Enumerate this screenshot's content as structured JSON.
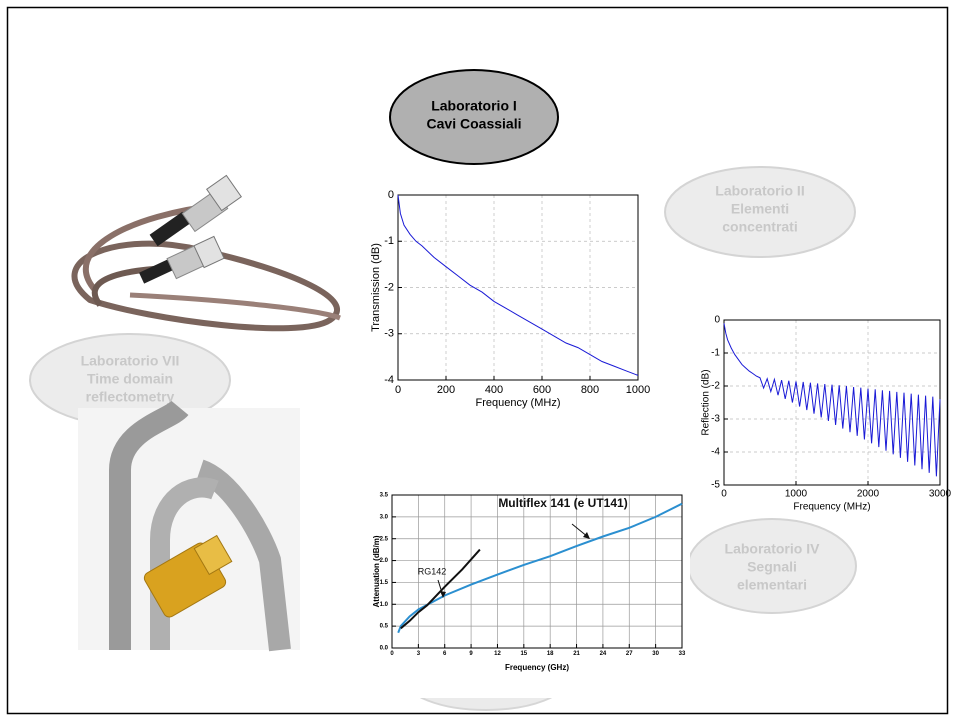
{
  "ovals": [
    {
      "lines": [
        "Laboratorio I",
        "Cavi Coassiali"
      ]
    },
    {
      "lines": [
        "Laboratorio II",
        "Elementi",
        "concentrati"
      ]
    },
    {
      "lines": [
        "Laboratorio VII",
        "Time domain",
        "reflectometry"
      ]
    },
    {
      "lines": [
        "Laboratorio IV",
        "Segnali",
        "elementari"
      ]
    }
  ],
  "chart_data": [
    {
      "type": "line",
      "xlabel": "Frequency (MHz)",
      "ylabel": "Transmission (dB)",
      "color": "#1a1ad6",
      "grid": true,
      "xlim": [
        0,
        1000
      ],
      "ylim": [
        -4,
        0
      ],
      "xticks": [
        0,
        200,
        400,
        600,
        800,
        1000
      ],
      "yticks": [
        -4,
        -3,
        -2,
        -1,
        0
      ],
      "x": [
        0,
        10,
        25,
        50,
        75,
        100,
        150,
        200,
        250,
        300,
        350,
        400,
        450,
        500,
        550,
        600,
        650,
        700,
        750,
        800,
        850,
        900,
        950,
        1000
      ],
      "values": [
        0,
        -0.4,
        -0.65,
        -0.85,
        -1.0,
        -1.1,
        -1.35,
        -1.55,
        -1.75,
        -1.95,
        -2.1,
        -2.3,
        -2.45,
        -2.6,
        -2.75,
        -2.9,
        -3.05,
        -3.2,
        -3.3,
        -3.45,
        -3.6,
        -3.7,
        -3.8,
        -3.9
      ]
    },
    {
      "type": "line",
      "xlabel": "Frequency (MHz)",
      "ylabel": "Reflection (dB)",
      "color": "#1a1ad6",
      "grid": true,
      "xlim": [
        0,
        3000
      ],
      "ylim": [
        -5,
        0
      ],
      "xticks": [
        0,
        1000,
        2000,
        3000
      ],
      "yticks": [
        -5,
        -4,
        -3,
        -2,
        -1,
        0
      ],
      "x": [
        0,
        25,
        50,
        100,
        150,
        200,
        250,
        300,
        350,
        400,
        450,
        500,
        550,
        600,
        650,
        700,
        750,
        800,
        850,
        900,
        950,
        1000,
        1050,
        1100,
        1150,
        1200,
        1250,
        1300,
        1350,
        1400,
        1450,
        1500,
        1550,
        1600,
        1650,
        1700,
        1750,
        1800,
        1850,
        1900,
        1950,
        2000,
        2050,
        2100,
        2150,
        2200,
        2250,
        2300,
        2350,
        2400,
        2450,
        2500,
        2550,
        2600,
        2650,
        2700,
        2750,
        2800,
        2850,
        2900,
        2950,
        3000
      ],
      "values": [
        -0.1,
        -0.4,
        -0.6,
        -0.85,
        -1.05,
        -1.2,
        -1.35,
        -1.45,
        -1.55,
        -1.62,
        -1.7,
        -1.75,
        -2.06,
        -1.78,
        -2.17,
        -1.8,
        -2.28,
        -1.82,
        -2.39,
        -1.84,
        -2.5,
        -1.86,
        -2.62,
        -1.88,
        -2.73,
        -1.9,
        -2.84,
        -1.92,
        -2.95,
        -1.94,
        -3.06,
        -1.96,
        -3.18,
        -1.98,
        -3.29,
        -2.0,
        -3.4,
        -2.03,
        -3.51,
        -2.05,
        -3.62,
        -2.08,
        -3.74,
        -2.1,
        -3.85,
        -2.13,
        -3.96,
        -2.15,
        -4.07,
        -2.18,
        -4.18,
        -2.2,
        -4.3,
        -2.23,
        -4.41,
        -2.26,
        -4.52,
        -2.29,
        -4.63,
        -2.32,
        -4.74,
        -2.4
      ]
    },
    {
      "type": "line",
      "xlabel": "Frequency (GHz)",
      "ylabel": "Attenuation (dB/m)",
      "grid": true,
      "xlim": [
        0,
        33
      ],
      "ylim": [
        0,
        3.5
      ],
      "xticks": [
        0,
        3,
        6,
        9,
        12,
        15,
        18,
        21,
        24,
        27,
        30,
        33
      ],
      "yticks": [
        {
          "value": 0,
          "label": "0.0"
        },
        0.5,
        {
          "value": 1,
          "label": "1.0"
        },
        1.5,
        {
          "value": 2,
          "label": "2.0"
        },
        2.5,
        {
          "value": 3,
          "label": "3.0"
        },
        3.5
      ],
      "series": [
        {
          "name": "Multiflex 141 (e UT141)",
          "color": "#2b8fd0",
          "x": [
            0.7,
            1,
            2,
            3,
            6,
            9,
            12,
            15,
            18,
            21,
            24,
            27,
            30,
            33
          ],
          "values": [
            0.35,
            0.5,
            0.72,
            0.88,
            1.2,
            1.45,
            1.68,
            1.9,
            2.1,
            2.33,
            2.55,
            2.75,
            3.0,
            3.3
          ]
        },
        {
          "name": "RG142",
          "color": "#111111",
          "x": [
            1,
            2,
            3,
            4,
            6,
            8,
            10
          ],
          "values": [
            0.45,
            0.62,
            0.82,
            0.98,
            1.4,
            1.8,
            2.25
          ]
        }
      ]
    }
  ]
}
